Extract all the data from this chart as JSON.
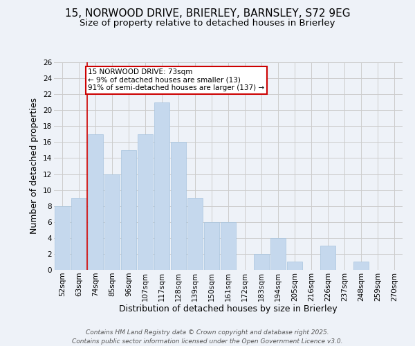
{
  "title1": "15, NORWOOD DRIVE, BRIERLEY, BARNSLEY, S72 9EG",
  "title2": "Size of property relative to detached houses in Brierley",
  "xlabel": "Distribution of detached houses by size in Brierley",
  "ylabel": "Number of detached properties",
  "categories": [
    "52sqm",
    "63sqm",
    "74sqm",
    "85sqm",
    "96sqm",
    "107sqm",
    "117sqm",
    "128sqm",
    "139sqm",
    "150sqm",
    "161sqm",
    "172sqm",
    "183sqm",
    "194sqm",
    "205sqm",
    "216sqm",
    "226sqm",
    "237sqm",
    "248sqm",
    "259sqm",
    "270sqm"
  ],
  "values": [
    8,
    9,
    17,
    12,
    15,
    17,
    21,
    16,
    9,
    6,
    6,
    0,
    2,
    4,
    1,
    0,
    3,
    0,
    1,
    0,
    0
  ],
  "bar_color": "#c5d8ed",
  "bar_edge_color": "#a8c4de",
  "red_line_x": 2,
  "annotation_text": "15 NORWOOD DRIVE: 73sqm\n← 9% of detached houses are smaller (13)\n91% of semi-detached houses are larger (137) →",
  "annotation_box_color": "#ffffff",
  "annotation_box_edge": "#cc0000",
  "ylim": [
    0,
    26
  ],
  "yticks": [
    0,
    2,
    4,
    6,
    8,
    10,
    12,
    14,
    16,
    18,
    20,
    22,
    24,
    26
  ],
  "grid_color": "#cccccc",
  "background_color": "#eef2f8",
  "footer": "Contains HM Land Registry data © Crown copyright and database right 2025.\nContains public sector information licensed under the Open Government Licence v3.0.",
  "title1_fontsize": 11,
  "title2_fontsize": 9.5,
  "xlabel_fontsize": 9,
  "ylabel_fontsize": 9,
  "tick_fontsize": 7.5,
  "footer_fontsize": 6.5
}
